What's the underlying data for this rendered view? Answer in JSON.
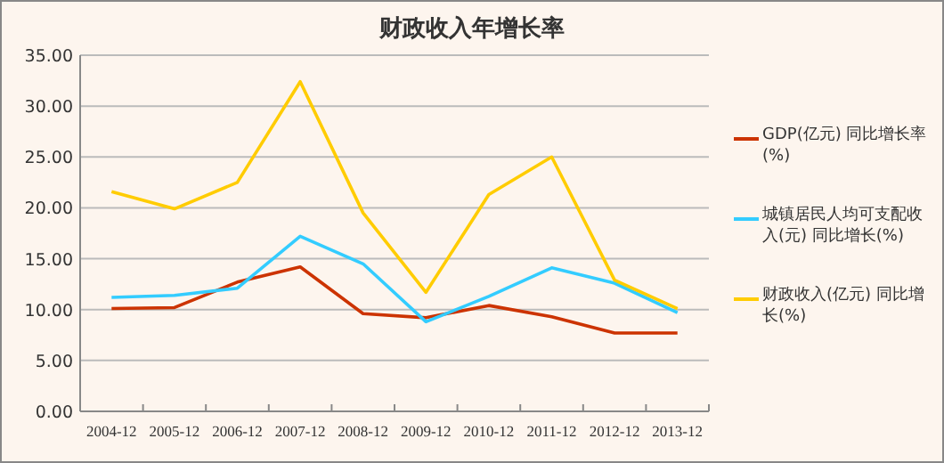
{
  "chart_data": {
    "type": "line",
    "title": "财政收入年增长率",
    "categories": [
      "2004-12",
      "2005-12",
      "2006-12",
      "2007-12",
      "2008-12",
      "2009-12",
      "2010-12",
      "2011-12",
      "2012-12",
      "2013-12"
    ],
    "series": [
      {
        "name": "GDP(亿元) 同比增长率(%)",
        "color": "#cc3300",
        "values": [
          10.1,
          10.2,
          12.7,
          14.2,
          9.6,
          9.2,
          10.4,
          9.3,
          7.7,
          7.7
        ]
      },
      {
        "name": "城镇居民人均可支配收入(元) 同比增长(%)",
        "color": "#33ccff",
        "values": [
          11.2,
          11.4,
          12.1,
          17.2,
          14.5,
          8.8,
          11.3,
          14.1,
          12.6,
          9.7
        ]
      },
      {
        "name": "财政收入(亿元) 同比增长(%)",
        "color": "#ffcc00",
        "values": [
          21.6,
          19.9,
          22.5,
          32.4,
          19.5,
          11.7,
          21.3,
          25.0,
          12.9,
          10.1
        ]
      }
    ],
    "ylim": [
      0,
      35
    ],
    "yticks": [
      {
        "value": 0,
        "label": "0.00"
      },
      {
        "value": 5,
        "label": "5.00"
      },
      {
        "value": 10,
        "label": "10.00"
      },
      {
        "value": 15,
        "label": "15.00"
      },
      {
        "value": 20,
        "label": "20.00"
      },
      {
        "value": 25,
        "label": "25.00"
      },
      {
        "value": 30,
        "label": "30.00"
      },
      {
        "value": 35,
        "label": "35.00"
      }
    ],
    "grid": "y",
    "legend": "right",
    "marker": "none",
    "line_style": "solid"
  }
}
